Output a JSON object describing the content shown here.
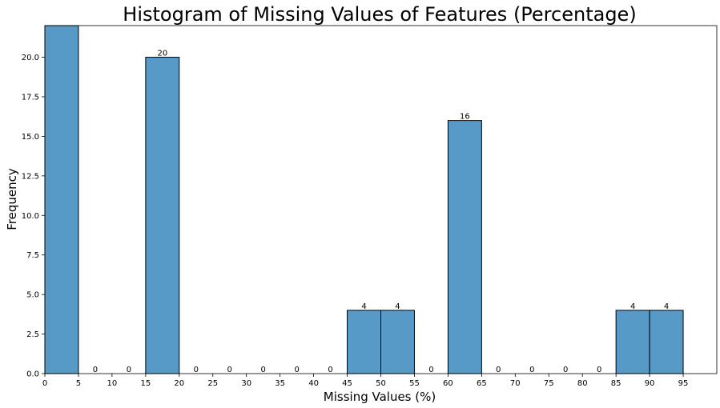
{
  "chart_data": {
    "type": "bar",
    "title": "Histogram of Missing Values of Features (Percentage)",
    "xlabel": "Missing Values (%)",
    "ylabel": "Frequency",
    "xlim": [
      0,
      100
    ],
    "ylim": [
      0,
      22
    ],
    "bin_width": 5,
    "bins": [
      {
        "start": 0,
        "value": 22,
        "label": ""
      },
      {
        "start": 5,
        "value": 0,
        "label": "0"
      },
      {
        "start": 10,
        "value": 0,
        "label": "0"
      },
      {
        "start": 15,
        "value": 20,
        "label": "20"
      },
      {
        "start": 20,
        "value": 0,
        "label": "0"
      },
      {
        "start": 25,
        "value": 0,
        "label": "0"
      },
      {
        "start": 30,
        "value": 0,
        "label": "0"
      },
      {
        "start": 35,
        "value": 0,
        "label": "0"
      },
      {
        "start": 40,
        "value": 0,
        "label": "0"
      },
      {
        "start": 45,
        "value": 4,
        "label": "4"
      },
      {
        "start": 50,
        "value": 4,
        "label": "4"
      },
      {
        "start": 55,
        "value": 0,
        "label": "0"
      },
      {
        "start": 60,
        "value": 16,
        "label": "16"
      },
      {
        "start": 65,
        "value": 0,
        "label": "0"
      },
      {
        "start": 70,
        "value": 0,
        "label": "0"
      },
      {
        "start": 75,
        "value": 0,
        "label": "0"
      },
      {
        "start": 80,
        "value": 0,
        "label": "0"
      },
      {
        "start": 85,
        "value": 4,
        "label": "4"
      },
      {
        "start": 90,
        "value": 4,
        "label": "4"
      }
    ],
    "x_ticks": [
      0,
      5,
      10,
      15,
      20,
      25,
      30,
      35,
      40,
      45,
      50,
      55,
      60,
      65,
      70,
      75,
      80,
      85,
      90,
      95
    ],
    "y_ticks": [
      "0.0",
      "2.5",
      "5.0",
      "7.5",
      "10.0",
      "12.5",
      "15.0",
      "17.5",
      "20.0"
    ],
    "grid": false,
    "colors": {
      "bar_fill": "#5799c7",
      "bar_edge": "#000000"
    }
  }
}
